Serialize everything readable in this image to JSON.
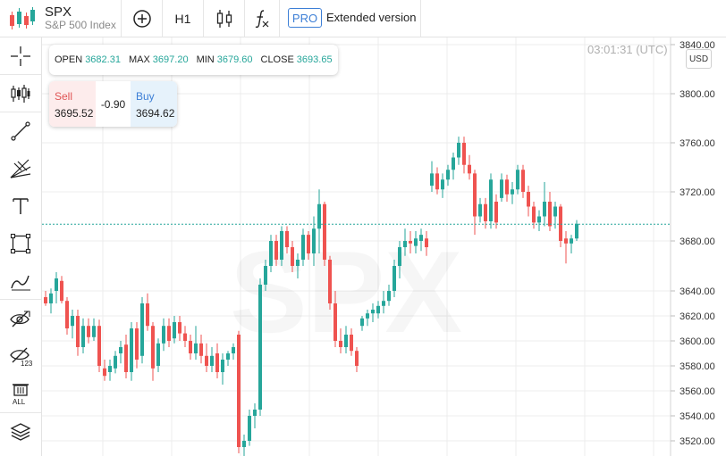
{
  "header": {
    "symbol": "SPX",
    "name": "S&P 500 Index",
    "interval": "H1",
    "pro_badge": "PRO",
    "extended_label": "Extended version"
  },
  "toolbar_icons": [
    "crosshair-icon",
    "candles-icon",
    "trend-line-icon",
    "fib-icon",
    "text-icon",
    "rectangle-icon",
    "brush-icon",
    "eye-hide-icon",
    "eye-123-icon",
    "trash-all-icon",
    "layers-icon"
  ],
  "ohlc": {
    "open_label": "OPEN",
    "open": "3682.31",
    "max_label": "MAX",
    "max": "3697.20",
    "min_label": "MIN",
    "min": "3679.60",
    "close_label": "CLOSE",
    "close": "3693.65"
  },
  "trade": {
    "sell_label": "Sell",
    "sell": "3695.52",
    "spread": "-0.90",
    "buy_label": "Buy",
    "buy": "3694.62"
  },
  "clock": "03:01:31 (UTC)",
  "currency": "USD",
  "watermark": "SPX",
  "colors": {
    "up": "#26a69a",
    "down": "#ef5350",
    "current_line": "#26a69a",
    "grid": "#ececec"
  },
  "chart_data": {
    "type": "candlestick",
    "price_axis_ticks": [
      3840,
      3800,
      3760,
      3720,
      3680,
      3640,
      3620,
      3600,
      3580,
      3560,
      3540,
      3520
    ],
    "price_tick_labels": [
      "3840.00",
      "3800.00",
      "3760.00",
      "3720.00",
      "3680.00",
      "3640.00",
      "3620.00",
      "3600.00",
      "3580.00",
      "3560.00",
      "3540.00",
      "3520.00"
    ],
    "current_price": 3693.65,
    "grid": true,
    "candles": [
      [
        3635,
        3640,
        3628,
        3630
      ],
      [
        3630,
        3642,
        3622,
        3638
      ],
      [
        3640,
        3655,
        3630,
        3650
      ],
      [
        3648,
        3652,
        3630,
        3632
      ],
      [
        3632,
        3635,
        3605,
        3610
      ],
      [
        3612,
        3625,
        3602,
        3620
      ],
      [
        3620,
        3625,
        3588,
        3595
      ],
      [
        3595,
        3618,
        3590,
        3612
      ],
      [
        3612,
        3618,
        3598,
        3603
      ],
      [
        3603,
        3618,
        3600,
        3612
      ],
      [
        3612,
        3617,
        3575,
        3580
      ],
      [
        3578,
        3585,
        3568,
        3572
      ],
      [
        3575,
        3585,
        3568,
        3580
      ],
      [
        3578,
        3592,
        3574,
        3588
      ],
      [
        3590,
        3600,
        3582,
        3595
      ],
      [
        3597,
        3605,
        3570,
        3575
      ],
      [
        3575,
        3615,
        3568,
        3610
      ],
      [
        3610,
        3615,
        3578,
        3585
      ],
      [
        3588,
        3635,
        3582,
        3630
      ],
      [
        3630,
        3638,
        3608,
        3612
      ],
      [
        3612,
        3615,
        3568,
        3578
      ],
      [
        3580,
        3602,
        3575,
        3598
      ],
      [
        3598,
        3618,
        3592,
        3612
      ],
      [
        3612,
        3618,
        3595,
        3600
      ],
      [
        3602,
        3620,
        3598,
        3615
      ],
      [
        3615,
        3620,
        3600,
        3606
      ],
      [
        3606,
        3612,
        3595,
        3600
      ],
      [
        3600,
        3605,
        3585,
        3590
      ],
      [
        3590,
        3612,
        3585,
        3598
      ],
      [
        3598,
        3605,
        3582,
        3588
      ],
      [
        3588,
        3598,
        3575,
        3580
      ],
      [
        3580,
        3595,
        3575,
        3588
      ],
      [
        3590,
        3598,
        3570,
        3575
      ],
      [
        3575,
        3590,
        3565,
        3585
      ],
      [
        3585,
        3592,
        3580,
        3590
      ],
      [
        3590,
        3598,
        3585,
        3595
      ],
      [
        3605,
        3608,
        3510,
        3515
      ],
      [
        3515,
        3525,
        3505,
        3520
      ],
      [
        3520,
        3545,
        3516,
        3540
      ],
      [
        3540,
        3550,
        3530,
        3545
      ],
      [
        3545,
        3650,
        3540,
        3645
      ],
      [
        3645,
        3665,
        3640,
        3660
      ],
      [
        3660,
        3685,
        3655,
        3680
      ],
      [
        3680,
        3685,
        3660,
        3665
      ],
      [
        3665,
        3692,
        3660,
        3688
      ],
      [
        3688,
        3692,
        3670,
        3675
      ],
      [
        3675,
        3680,
        3655,
        3660
      ],
      [
        3660,
        3670,
        3650,
        3665
      ],
      [
        3665,
        3690,
        3660,
        3685
      ],
      [
        3685,
        3688,
        3665,
        3670
      ],
      [
        3670,
        3700,
        3660,
        3690
      ],
      [
        3690,
        3722,
        3670,
        3710
      ],
      [
        3710,
        3712,
        3660,
        3665
      ],
      [
        3665,
        3668,
        3625,
        3630
      ],
      [
        3630,
        3640,
        3595,
        3600
      ],
      [
        3600,
        3610,
        3590,
        3595
      ],
      [
        3595,
        3612,
        3590,
        3605
      ],
      [
        3605,
        3610,
        3588,
        3592
      ],
      [
        3592,
        3595,
        3575,
        3580
      ],
      [
        3612,
        3620,
        3608,
        3618
      ],
      [
        3618,
        3625,
        3612,
        3622
      ],
      [
        3622,
        3630,
        3615,
        3625
      ],
      [
        3622,
        3632,
        3618,
        3628
      ],
      [
        3628,
        3640,
        3622,
        3632
      ],
      [
        3632,
        3645,
        3628,
        3640
      ],
      [
        3640,
        3665,
        3635,
        3660
      ],
      [
        3660,
        3680,
        3650,
        3675
      ],
      [
        3675,
        3690,
        3668,
        3680
      ],
      [
        3680,
        3688,
        3670,
        3678
      ],
      [
        3676,
        3688,
        3670,
        3682
      ],
      [
        3680,
        3690,
        3672,
        3685
      ],
      [
        3682,
        3688,
        3668,
        3675
      ],
      [
        3725,
        3745,
        3720,
        3735
      ],
      [
        3735,
        3740,
        3718,
        3722
      ],
      [
        3722,
        3735,
        3715,
        3730
      ],
      [
        3730,
        3742,
        3725,
        3738
      ],
      [
        3738,
        3752,
        3730,
        3748
      ],
      [
        3748,
        3765,
        3742,
        3760
      ],
      [
        3760,
        3765,
        3735,
        3742
      ],
      [
        3742,
        3750,
        3730,
        3735
      ],
      [
        3735,
        3738,
        3685,
        3700
      ],
      [
        3700,
        3715,
        3695,
        3710
      ],
      [
        3710,
        3715,
        3690,
        3696
      ],
      [
        3696,
        3735,
        3690,
        3730
      ],
      [
        3712,
        3718,
        3690,
        3695
      ],
      [
        3715,
        3735,
        3712,
        3730
      ],
      [
        3730,
        3734,
        3712,
        3718
      ],
      [
        3718,
        3728,
        3710,
        3722
      ],
      [
        3722,
        3742,
        3718,
        3738
      ],
      [
        3738,
        3742,
        3715,
        3720
      ],
      [
        3720,
        3725,
        3700,
        3708
      ],
      [
        3708,
        3712,
        3690,
        3695
      ],
      [
        3695,
        3705,
        3688,
        3700
      ],
      [
        3700,
        3728,
        3692,
        3712
      ],
      [
        3712,
        3720,
        3688,
        3692
      ],
      [
        3700,
        3712,
        3690,
        3708
      ],
      [
        3708,
        3710,
        3675,
        3680
      ],
      [
        3682,
        3688,
        3662,
        3678
      ],
      [
        3678,
        3685,
        3670,
        3682
      ],
      [
        3682,
        3697,
        3680,
        3694
      ]
    ]
  }
}
